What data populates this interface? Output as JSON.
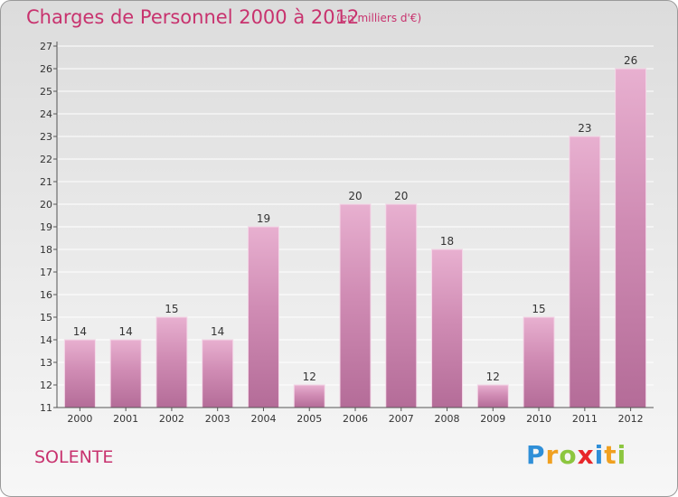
{
  "chart_data": {
    "type": "bar",
    "title": "Charges de Personnel 2000 à 2012",
    "subtitle": "(en milliers d'€)",
    "categories": [
      "2000",
      "2001",
      "2002",
      "2003",
      "2004",
      "2005",
      "2006",
      "2007",
      "2008",
      "2009",
      "2010",
      "2011",
      "2012"
    ],
    "values": [
      14,
      14,
      15,
      14,
      19,
      12,
      20,
      20,
      18,
      12,
      15,
      23,
      26
    ],
    "ylim": [
      11,
      27
    ],
    "yticks": [
      "11",
      "12",
      "13",
      "14",
      "15",
      "16",
      "17",
      "18",
      "19",
      "20",
      "21",
      "22",
      "23",
      "24",
      "25",
      "26",
      "27"
    ],
    "xlabel": "",
    "ylabel": "",
    "grid": true,
    "legend": "none",
    "colors": {
      "bar": "#d08cb4",
      "bar_light": "#e8b0d0",
      "bar_dark": "#b46c98",
      "text": "#c8326e",
      "grid": "#ffffff"
    }
  },
  "town": "SOLENTE",
  "logo": {
    "letters": [
      "P",
      "r",
      "o",
      "x",
      "i",
      "t",
      "i"
    ],
    "colors": [
      "#2f8fd8",
      "#f0a020",
      "#8cc63f",
      "#e8262a",
      "#2f8fd8",
      "#f0a020",
      "#8cc63f"
    ]
  }
}
